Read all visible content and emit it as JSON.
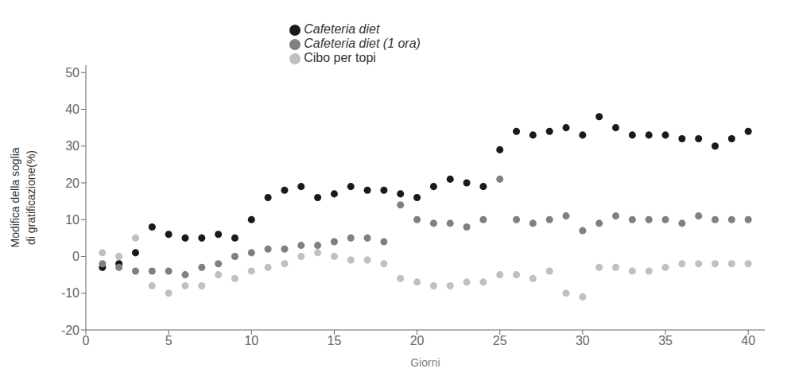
{
  "chart_data": {
    "type": "scatter",
    "xlabel": "Giorni",
    "ylabel": "Modifica della soglia\ndi gratificazione(%)",
    "xlim": [
      0,
      41
    ],
    "ylim": [
      -20,
      52
    ],
    "xticks": [
      0,
      5,
      10,
      15,
      20,
      25,
      30,
      35,
      40
    ],
    "yticks": [
      -20,
      -10,
      0,
      10,
      20,
      30,
      40,
      50
    ],
    "grid": false,
    "legend": "top",
    "marker": "circle",
    "series": [
      {
        "name": "Cafeteria diet",
        "color": "#1a1a1a",
        "x": [
          1,
          2,
          3,
          4,
          5,
          6,
          7,
          8,
          9,
          10,
          11,
          12,
          13,
          14,
          15,
          16,
          17,
          18,
          19,
          20,
          21,
          22,
          23,
          24,
          25,
          26,
          27,
          28,
          29,
          30,
          31,
          32,
          33,
          34,
          35,
          36,
          37,
          38,
          39,
          40
        ],
        "values": [
          -3,
          -2,
          1,
          8,
          6,
          5,
          5,
          6,
          5,
          10,
          16,
          18,
          19,
          16,
          17,
          19,
          18,
          18,
          17,
          16,
          19,
          21,
          20,
          19,
          29,
          34,
          33,
          34,
          35,
          33,
          38,
          35,
          33,
          33,
          33,
          32,
          32,
          30,
          32,
          34
        ]
      },
      {
        "name": "Cafeteria diet (1 ora)",
        "color": "#808080",
        "x": [
          1,
          2,
          3,
          4,
          5,
          6,
          7,
          8,
          9,
          10,
          11,
          12,
          13,
          14,
          15,
          16,
          17,
          18,
          19,
          20,
          21,
          22,
          23,
          24,
          25,
          26,
          27,
          28,
          29,
          30,
          31,
          32,
          33,
          34,
          35,
          36,
          37,
          38,
          39,
          40
        ],
        "values": [
          -2,
          -3,
          -4,
          -4,
          -4,
          -5,
          -3,
          -2,
          0,
          1,
          2,
          2,
          3,
          3,
          4,
          5,
          5,
          4,
          14,
          10,
          9,
          9,
          8,
          10,
          21,
          10,
          9,
          10,
          11,
          7,
          9,
          11,
          10,
          10,
          10,
          9,
          11,
          10,
          10,
          10
        ]
      },
      {
        "name": "Cibo per topi",
        "color": "#c0c0c0",
        "x": [
          1,
          2,
          3,
          4,
          5,
          6,
          7,
          8,
          9,
          10,
          11,
          12,
          13,
          14,
          15,
          16,
          17,
          18,
          19,
          20,
          21,
          22,
          23,
          24,
          25,
          26,
          27,
          28,
          29,
          30,
          31,
          32,
          33,
          34,
          35,
          36,
          37,
          38,
          39,
          40
        ],
        "values": [
          1,
          0,
          5,
          -8,
          -10,
          -8,
          -8,
          -5,
          -6,
          -4,
          -3,
          -2,
          0,
          1,
          0,
          -1,
          -1,
          -2,
          -6,
          -7,
          -8,
          -8,
          -7,
          -7,
          -5,
          -5,
          -6,
          -4,
          -10,
          -11,
          -3,
          -3,
          -4,
          -4,
          -3,
          -2,
          -2,
          -2,
          -2,
          -2
        ]
      }
    ]
  }
}
